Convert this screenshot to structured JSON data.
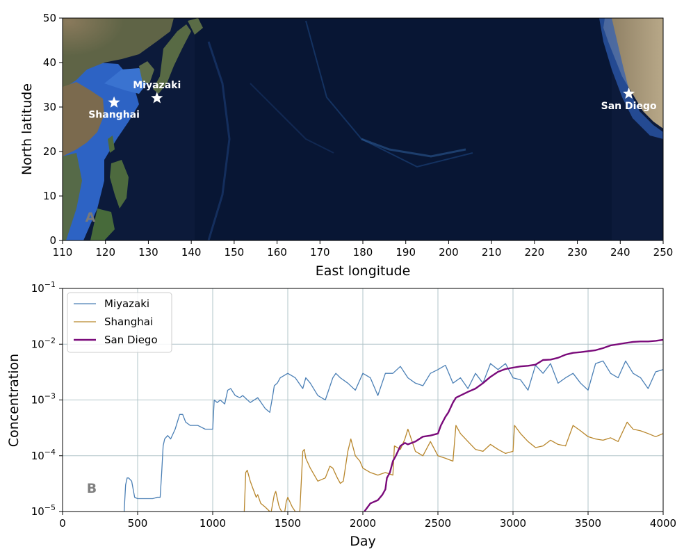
{
  "chart_data": [
    {
      "panel": "A",
      "type": "scatter",
      "xlabel": "East longitude",
      "ylabel": "North latitude",
      "xlim": [
        110,
        250
      ],
      "ylim": [
        0,
        50
      ],
      "xticks": [
        110,
        120,
        130,
        140,
        150,
        160,
        170,
        180,
        190,
        200,
        210,
        220,
        230,
        240,
        250
      ],
      "yticks": [
        0,
        10,
        20,
        30,
        40,
        50
      ],
      "background": "satellite relief map of the North Pacific Ocean",
      "points": [
        {
          "label": "Miyazaki",
          "x": 132,
          "y": 32,
          "marker": "white-star-icon"
        },
        {
          "label": "Shanghai",
          "x": 122,
          "y": 31,
          "marker": "white-star-icon"
        },
        {
          "label": "San Diego",
          "x": 242,
          "y": 33,
          "marker": "white-star-icon"
        }
      ]
    },
    {
      "panel": "B",
      "type": "line",
      "xlabel": "Day",
      "ylabel": "Concentration",
      "xlim": [
        0,
        4000
      ],
      "ylim": [
        1e-05,
        0.1
      ],
      "yscale": "log",
      "grid": true,
      "legend": "top-left",
      "xticks": [
        0,
        500,
        1000,
        1500,
        2000,
        2500,
        3000,
        3500,
        4000
      ],
      "yticks": [
        {
          "base": "10",
          "exp": "−5",
          "value": 1e-05
        },
        {
          "base": "10",
          "exp": "−4",
          "value": 0.0001
        },
        {
          "base": "10",
          "exp": "−3",
          "value": 0.001
        },
        {
          "base": "10",
          "exp": "−2",
          "value": 0.01
        },
        {
          "base": "10",
          "exp": "−1",
          "value": 0.1
        }
      ],
      "series": [
        {
          "name": "Miyazaki",
          "color": "#4a7fb5",
          "x": [
            410,
            420,
            430,
            440,
            460,
            480,
            500,
            520,
            560,
            600,
            630,
            650,
            660,
            670,
            680,
            700,
            720,
            750,
            780,
            800,
            820,
            850,
            900,
            950,
            1000,
            1010,
            1030,
            1050,
            1080,
            1100,
            1120,
            1150,
            1180,
            1200,
            1250,
            1300,
            1350,
            1380,
            1400,
            1410,
            1430,
            1450,
            1500,
            1550,
            1600,
            1620,
            1650,
            1700,
            1750,
            1800,
            1820,
            1850,
            1900,
            1950,
            2000,
            2050,
            2100,
            2150,
            2200,
            2250,
            2300,
            2350,
            2400,
            2450,
            2500,
            2550,
            2600,
            2650,
            2700,
            2750,
            2800,
            2850,
            2900,
            2950,
            3000,
            3050,
            3100,
            3150,
            3200,
            3250,
            3300,
            3350,
            3400,
            3450,
            3500,
            3550,
            3600,
            3650,
            3700,
            3750,
            3800,
            3850,
            3900,
            3950,
            4000
          ],
          "y": [
            1e-05,
            3e-05,
            4e-05,
            4e-05,
            3.5e-05,
            1.8e-05,
            1.7e-05,
            1.7e-05,
            1.7e-05,
            1.7e-05,
            1.8e-05,
            1.8e-05,
            5e-05,
            0.00015,
            0.0002,
            0.00023,
            0.0002,
            0.0003,
            0.00055,
            0.00055,
            0.0004,
            0.00035,
            0.00035,
            0.0003,
            0.0003,
            0.001,
            0.0009,
            0.001,
            0.00085,
            0.0015,
            0.0016,
            0.0012,
            0.0011,
            0.0012,
            0.0009,
            0.0011,
            0.0007,
            0.0006,
            0.0012,
            0.0018,
            0.002,
            0.0025,
            0.003,
            0.0025,
            0.0016,
            0.0025,
            0.002,
            0.0012,
            0.001,
            0.0025,
            0.003,
            0.0025,
            0.002,
            0.0015,
            0.003,
            0.0025,
            0.0012,
            0.003,
            0.003,
            0.004,
            0.0025,
            0.002,
            0.0018,
            0.003,
            0.0035,
            0.0042,
            0.002,
            0.0025,
            0.0016,
            0.003,
            0.002,
            0.0045,
            0.0035,
            0.0045,
            0.0025,
            0.0023,
            0.0015,
            0.0042,
            0.003,
            0.0045,
            0.002,
            0.0025,
            0.003,
            0.002,
            0.0015,
            0.0045,
            0.005,
            0.003,
            0.0025,
            0.005,
            0.003,
            0.0025,
            0.0016,
            0.0032,
            0.0035
          ]
        },
        {
          "name": "Shanghai",
          "color": "#b8862b",
          "x": [
            1210,
            1220,
            1230,
            1250,
            1270,
            1290,
            1300,
            1320,
            1350,
            1380,
            1390,
            1410,
            1420,
            1440,
            1450,
            1460,
            1470,
            1480,
            1490,
            1500,
            1530,
            1550,
            1560,
            1580,
            1600,
            1610,
            1620,
            1650,
            1700,
            1750,
            1780,
            1800,
            1830,
            1850,
            1870,
            1900,
            1920,
            1950,
            1980,
            2000,
            2050,
            2100,
            2150,
            2200,
            2210,
            2250,
            2280,
            2300,
            2310,
            2350,
            2400,
            2450,
            2500,
            2550,
            2600,
            2620,
            2650,
            2700,
            2750,
            2800,
            2850,
            2900,
            2950,
            3000,
            3010,
            3050,
            3100,
            3150,
            3200,
            3250,
            3300,
            3350,
            3400,
            3450,
            3500,
            3550,
            3600,
            3650,
            3700,
            3750,
            3760,
            3800,
            3850,
            3900,
            3950,
            4000
          ],
          "y": [
            1e-05,
            5e-05,
            5.5e-05,
            3.5e-05,
            2.5e-05,
            1.8e-05,
            2e-05,
            1.4e-05,
            1.2e-05,
            1e-05,
            1e-05,
            2e-05,
            2.3e-05,
            1.3e-05,
            1.1e-05,
            1e-05,
            1e-05,
            1e-05,
            1.5e-05,
            1.8e-05,
            1.2e-05,
            1e-05,
            1e-05,
            1e-05,
            0.00012,
            0.00013,
            9e-05,
            6e-05,
            3.5e-05,
            4e-05,
            6.5e-05,
            6e-05,
            4e-05,
            3.2e-05,
            3.5e-05,
            0.00012,
            0.0002,
            0.0001,
            8e-05,
            6e-05,
            5e-05,
            4.5e-05,
            5e-05,
            4.5e-05,
            0.00015,
            0.00013,
            0.0002,
            0.0003,
            0.00025,
            0.00012,
            0.0001,
            0.00018,
            0.0001,
            9e-05,
            8e-05,
            0.00035,
            0.00025,
            0.00018,
            0.00013,
            0.00012,
            0.00016,
            0.00013,
            0.00011,
            0.00012,
            0.00035,
            0.00025,
            0.00018,
            0.00014,
            0.00015,
            0.00019,
            0.00016,
            0.00015,
            0.00035,
            0.00028,
            0.00022,
            0.0002,
            0.00019,
            0.00021,
            0.00018,
            0.00035,
            0.0004,
            0.0003,
            0.00028,
            0.00025,
            0.00022,
            0.00025
          ]
        },
        {
          "name": "San Diego",
          "color": "#7a0a7a",
          "x": [
            2010,
            2050,
            2100,
            2130,
            2150,
            2160,
            2180,
            2200,
            2220,
            2250,
            2280,
            2300,
            2350,
            2400,
            2450,
            2500,
            2520,
            2550,
            2570,
            2600,
            2620,
            2650,
            2700,
            2750,
            2800,
            2850,
            2900,
            2950,
            3000,
            3050,
            3100,
            3150,
            3200,
            3250,
            3300,
            3350,
            3400,
            3450,
            3500,
            3550,
            3600,
            3650,
            3700,
            3750,
            3800,
            3850,
            3900,
            3950,
            4000
          ],
          "y": [
            1e-05,
            1.4e-05,
            1.6e-05,
            2e-05,
            2.5e-05,
            4e-05,
            5e-05,
            8e-05,
            0.0001,
            0.00015,
            0.00017,
            0.00016,
            0.00018,
            0.00022,
            0.00023,
            0.00025,
            0.00035,
            0.0005,
            0.0006,
            0.0009,
            0.0011,
            0.0012,
            0.0014,
            0.0016,
            0.002,
            0.0026,
            0.0032,
            0.0036,
            0.0038,
            0.004,
            0.0041,
            0.0043,
            0.0052,
            0.0053,
            0.0057,
            0.0065,
            0.007,
            0.0072,
            0.0075,
            0.0078,
            0.0085,
            0.0095,
            0.01,
            0.0105,
            0.011,
            0.0112,
            0.0112,
            0.0115,
            0.012
          ]
        }
      ]
    }
  ],
  "panel_a_label": "A",
  "panel_b_label": "B"
}
